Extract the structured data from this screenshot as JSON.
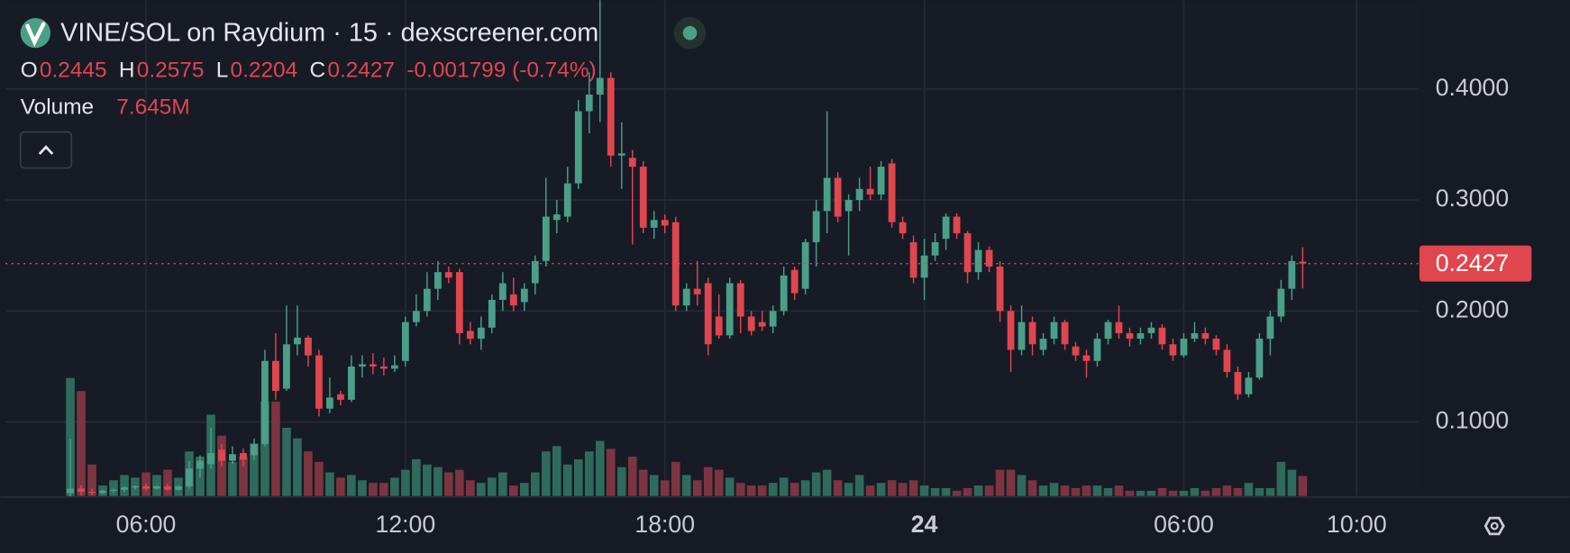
{
  "chart_data": {
    "type": "candlestick",
    "title": "VINE/SOL on Raydium · 15 · dexscreener.com",
    "ohlc": [
      {
        "label": "O",
        "value": "0.2445"
      },
      {
        "label": "H",
        "value": "0.2575"
      },
      {
        "label": "L",
        "value": "0.2204"
      },
      {
        "label": "C",
        "value": "0.2427"
      }
    ],
    "change": "-0.001799 (-0.74%)",
    "volume_label": "Volume",
    "volume_value": "7.645M",
    "up_color": "#4a9f87",
    "down_color": "#e0464e",
    "volume_up_color": "#2f6b5c",
    "volume_down_color": "#7c3540",
    "grid": true,
    "xlim": [
      -6,
      124.8
    ],
    "ylim": [
      0.0333,
      0.4802
    ],
    "vlim": [
      0,
      130
    ],
    "yticks": [
      {
        "value": 0.1,
        "label": "0.1000"
      },
      {
        "value": 0.2,
        "label": "0.2000"
      },
      {
        "value": 0.3,
        "label": "0.3000"
      },
      {
        "value": 0.4,
        "label": "0.4000"
      }
    ],
    "xticks": [
      {
        "value": 7,
        "label": "06:00"
      },
      {
        "value": 31,
        "label": "12:00"
      },
      {
        "value": 55,
        "label": "18:00"
      },
      {
        "value": 79,
        "label": "24",
        "bold": true
      },
      {
        "value": 103,
        "label": "06:00"
      },
      {
        "value": 119,
        "label": "10:00"
      }
    ],
    "last_price": {
      "value": 0.2427,
      "label": "0.2427"
    },
    "candles": [
      [
        0.036,
        0.085,
        0.033,
        0.04,
        45
      ],
      [
        0.04,
        0.043,
        0.034,
        0.037,
        40
      ],
      [
        0.037,
        0.04,
        0.034,
        0.036,
        12
      ],
      [
        0.036,
        0.039,
        0.035,
        0.038,
        4
      ],
      [
        0.038,
        0.04,
        0.036,
        0.039,
        6
      ],
      [
        0.039,
        0.042,
        0.037,
        0.041,
        8
      ],
      [
        0.041,
        0.043,
        0.039,
        0.042,
        7
      ],
      [
        0.042,
        0.044,
        0.038,
        0.04,
        9
      ],
      [
        0.04,
        0.043,
        0.039,
        0.042,
        8
      ],
      [
        0.042,
        0.044,
        0.038,
        0.039,
        10
      ],
      [
        0.039,
        0.043,
        0.038,
        0.042,
        7
      ],
      [
        0.042,
        0.065,
        0.04,
        0.058,
        17
      ],
      [
        0.058,
        0.07,
        0.05,
        0.065,
        15
      ],
      [
        0.062,
        0.095,
        0.058,
        0.072,
        31
      ],
      [
        0.075,
        0.08,
        0.06,
        0.065,
        23
      ],
      [
        0.065,
        0.078,
        0.062,
        0.071,
        13
      ],
      [
        0.072,
        0.076,
        0.06,
        0.066,
        15
      ],
      [
        0.07,
        0.085,
        0.066,
        0.08,
        20
      ],
      [
        0.08,
        0.165,
        0.078,
        0.155,
        36
      ],
      [
        0.155,
        0.18,
        0.12,
        0.128,
        36
      ],
      [
        0.13,
        0.205,
        0.128,
        0.17,
        26
      ],
      [
        0.17,
        0.205,
        0.16,
        0.176,
        22
      ],
      [
        0.176,
        0.178,
        0.15,
        0.16,
        17
      ],
      [
        0.16,
        0.165,
        0.105,
        0.112,
        13
      ],
      [
        0.112,
        0.14,
        0.108,
        0.122,
        9
      ],
      [
        0.125,
        0.128,
        0.115,
        0.12,
        7
      ],
      [
        0.12,
        0.16,
        0.118,
        0.15,
        8
      ],
      [
        0.15,
        0.16,
        0.14,
        0.152,
        6
      ],
      [
        0.152,
        0.162,
        0.143,
        0.15,
        5
      ],
      [
        0.15,
        0.158,
        0.142,
        0.148,
        5
      ],
      [
        0.148,
        0.16,
        0.145,
        0.151,
        7
      ],
      [
        0.155,
        0.195,
        0.15,
        0.19,
        10
      ],
      [
        0.19,
        0.215,
        0.186,
        0.2,
        14
      ],
      [
        0.2,
        0.235,
        0.195,
        0.22,
        12
      ],
      [
        0.22,
        0.245,
        0.21,
        0.235,
        11
      ],
      [
        0.235,
        0.24,
        0.225,
        0.23,
        9
      ],
      [
        0.235,
        0.238,
        0.17,
        0.18,
        10
      ],
      [
        0.182,
        0.19,
        0.17,
        0.175,
        6
      ],
      [
        0.175,
        0.195,
        0.165,
        0.185,
        5
      ],
      [
        0.185,
        0.215,
        0.18,
        0.21,
        7
      ],
      [
        0.21,
        0.235,
        0.2,
        0.225,
        9
      ],
      [
        0.215,
        0.23,
        0.2,
        0.205,
        4
      ],
      [
        0.208,
        0.225,
        0.2,
        0.22,
        5
      ],
      [
        0.225,
        0.25,
        0.215,
        0.245,
        9
      ],
      [
        0.245,
        0.32,
        0.24,
        0.285,
        17
      ],
      [
        0.282,
        0.3,
        0.27,
        0.287,
        19
      ],
      [
        0.285,
        0.33,
        0.28,
        0.315,
        12
      ],
      [
        0.315,
        0.39,
        0.31,
        0.38,
        14
      ],
      [
        0.38,
        0.415,
        0.36,
        0.395,
        17
      ],
      [
        0.395,
        0.48,
        0.37,
        0.41,
        21
      ],
      [
        0.41,
        0.415,
        0.33,
        0.34,
        18
      ],
      [
        0.34,
        0.37,
        0.31,
        0.342,
        11
      ],
      [
        0.338,
        0.345,
        0.26,
        0.33,
        15
      ],
      [
        0.33,
        0.335,
        0.27,
        0.275,
        10
      ],
      [
        0.275,
        0.29,
        0.265,
        0.282,
        8
      ],
      [
        0.282,
        0.287,
        0.27,
        0.277,
        6
      ],
      [
        0.28,
        0.285,
        0.2,
        0.205,
        13
      ],
      [
        0.205,
        0.225,
        0.2,
        0.22,
        8
      ],
      [
        0.22,
        0.245,
        0.205,
        0.215,
        6
      ],
      [
        0.225,
        0.23,
        0.16,
        0.17,
        11
      ],
      [
        0.195,
        0.215,
        0.175,
        0.178,
        10
      ],
      [
        0.178,
        0.23,
        0.175,
        0.225,
        7
      ],
      [
        0.225,
        0.228,
        0.18,
        0.195,
        5
      ],
      [
        0.195,
        0.2,
        0.178,
        0.182,
        4
      ],
      [
        0.19,
        0.2,
        0.182,
        0.186,
        4
      ],
      [
        0.186,
        0.205,
        0.18,
        0.2,
        5
      ],
      [
        0.2,
        0.24,
        0.196,
        0.232,
        7
      ],
      [
        0.237,
        0.24,
        0.21,
        0.216,
        5
      ],
      [
        0.22,
        0.265,
        0.215,
        0.262,
        6
      ],
      [
        0.262,
        0.3,
        0.24,
        0.29,
        9
      ],
      [
        0.29,
        0.38,
        0.27,
        0.32,
        10
      ],
      [
        0.32,
        0.325,
        0.28,
        0.285,
        6
      ],
      [
        0.29,
        0.305,
        0.25,
        0.3,
        5
      ],
      [
        0.3,
        0.32,
        0.29,
        0.31,
        8
      ],
      [
        0.31,
        0.33,
        0.3,
        0.305,
        4
      ],
      [
        0.305,
        0.335,
        0.3,
        0.33,
        5
      ],
      [
        0.333,
        0.337,
        0.275,
        0.28,
        6
      ],
      [
        0.28,
        0.285,
        0.265,
        0.27,
        5
      ],
      [
        0.262,
        0.268,
        0.225,
        0.23,
        6
      ],
      [
        0.23,
        0.265,
        0.21,
        0.25,
        4
      ],
      [
        0.25,
        0.27,
        0.245,
        0.262,
        3
      ],
      [
        0.265,
        0.288,
        0.255,
        0.285,
        3
      ],
      [
        0.285,
        0.288,
        0.265,
        0.27,
        2
      ],
      [
        0.27,
        0.272,
        0.225,
        0.235,
        3
      ],
      [
        0.235,
        0.262,
        0.228,
        0.255,
        4
      ],
      [
        0.255,
        0.258,
        0.235,
        0.24,
        4
      ],
      [
        0.24,
        0.245,
        0.19,
        0.2,
        10
      ],
      [
        0.2,
        0.205,
        0.145,
        0.165,
        10
      ],
      [
        0.165,
        0.205,
        0.16,
        0.19,
        8
      ],
      [
        0.19,
        0.195,
        0.16,
        0.17,
        6
      ],
      [
        0.165,
        0.18,
        0.16,
        0.175,
        4
      ],
      [
        0.175,
        0.195,
        0.17,
        0.19,
        5
      ],
      [
        0.19,
        0.192,
        0.165,
        0.17,
        4
      ],
      [
        0.168,
        0.172,
        0.155,
        0.16,
        3
      ],
      [
        0.16,
        0.165,
        0.14,
        0.155,
        4
      ],
      [
        0.155,
        0.18,
        0.15,
        0.175,
        4
      ],
      [
        0.175,
        0.192,
        0.17,
        0.19,
        3
      ],
      [
        0.19,
        0.205,
        0.175,
        0.18,
        4
      ],
      [
        0.18,
        0.185,
        0.168,
        0.175,
        2
      ],
      [
        0.175,
        0.185,
        0.17,
        0.18,
        2
      ],
      [
        0.18,
        0.19,
        0.175,
        0.185,
        2
      ],
      [
        0.185,
        0.188,
        0.165,
        0.17,
        3
      ],
      [
        0.17,
        0.175,
        0.155,
        0.16,
        2
      ],
      [
        0.16,
        0.18,
        0.158,
        0.175,
        2
      ],
      [
        0.175,
        0.19,
        0.172,
        0.18,
        3
      ],
      [
        0.18,
        0.185,
        0.17,
        0.175,
        2
      ],
      [
        0.175,
        0.178,
        0.16,
        0.165,
        3
      ],
      [
        0.165,
        0.17,
        0.14,
        0.145,
        4
      ],
      [
        0.145,
        0.15,
        0.12,
        0.125,
        3
      ],
      [
        0.125,
        0.145,
        0.122,
        0.14,
        5
      ],
      [
        0.14,
        0.18,
        0.138,
        0.175,
        3
      ],
      [
        0.175,
        0.2,
        0.16,
        0.195,
        3
      ],
      [
        0.195,
        0.228,
        0.19,
        0.22,
        13
      ],
      [
        0.22,
        0.25,
        0.21,
        0.245,
        10
      ],
      [
        0.2445,
        0.2575,
        0.2204,
        0.2427,
        7.645
      ]
    ]
  }
}
